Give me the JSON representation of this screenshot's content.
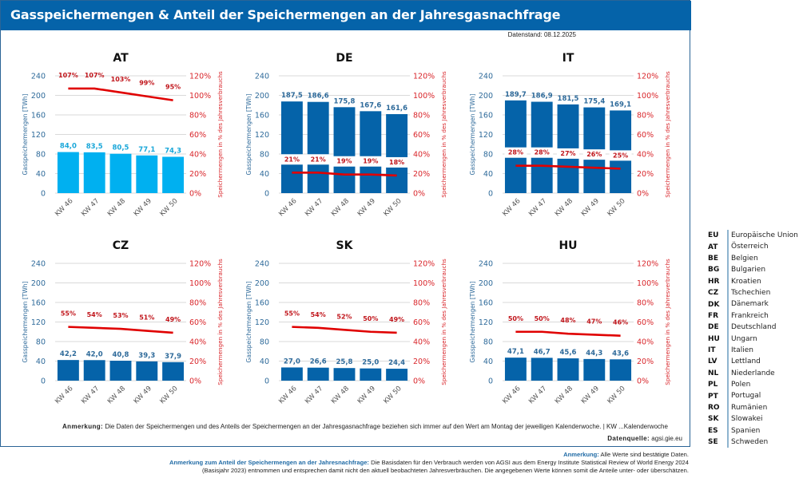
{
  "header": {
    "title": "Gasspeichermengen & Anteil der Speichermengen an der Jahresgasnachfrage",
    "datenstand": "Datenstand: 08.12.2025"
  },
  "chart_data": [
    {
      "type": "bar+line",
      "title": "AT",
      "categories": [
        "KW 46",
        "KW 47",
        "KW 48",
        "KW 49",
        "KW 50"
      ],
      "series": [
        {
          "name": "Gasspeichermengen [TWh]",
          "axis": "left",
          "values": [
            84.0,
            83.5,
            80.5,
            77.1,
            74.3
          ],
          "labels": [
            "84,0",
            "83,5",
            "80,5",
            "77,1",
            "74,3"
          ],
          "color": "#00b0f0"
        },
        {
          "name": "Speichermengen in % des Jahresverbrauchs",
          "axis": "right",
          "values": [
            107,
            107,
            103,
            99,
            95
          ],
          "labels": [
            "107%",
            "107%",
            "103%",
            "99%",
            "95%"
          ],
          "color": "#e00000"
        }
      ],
      "ylabel": "Gasspeichermengen [TWh]",
      "y2label": "Speichermengen in % des Jahresverbrauchs",
      "yticks": [
        "0",
        "40",
        "80",
        "120",
        "160",
        "200",
        "240"
      ],
      "y2ticks": [
        "0%",
        "20%",
        "40%",
        "60%",
        "80%",
        "100%",
        "120%"
      ],
      "ylim": [
        0,
        240
      ],
      "y2lim": [
        0,
        120
      ],
      "grid": true,
      "pct_label_boxed": false
    },
    {
      "type": "bar+line",
      "title": "DE",
      "categories": [
        "KW 46",
        "KW 47",
        "KW 48",
        "KW 49",
        "KW 50"
      ],
      "series": [
        {
          "name": "Gasspeichermengen [TWh]",
          "axis": "left",
          "values": [
            187.5,
            186.6,
            175.8,
            167.6,
            161.6
          ],
          "labels": [
            "187,5",
            "186,6",
            "175,8",
            "167,6",
            "161,6"
          ],
          "color": "#0563a9"
        },
        {
          "name": "Speichermengen in % des Jahresverbrauchs",
          "axis": "right",
          "values": [
            21,
            21,
            19,
            19,
            18
          ],
          "labels": [
            "21%",
            "21%",
            "19%",
            "19%",
            "18%"
          ],
          "color": "#e00000"
        }
      ],
      "ylabel": "Gasspeichermengen [TWh]",
      "y2label": "Speichermengen in % des Jahresverbrauchs",
      "yticks": [
        "0",
        "40",
        "80",
        "120",
        "160",
        "200",
        "240"
      ],
      "y2ticks": [
        "0%",
        "20%",
        "40%",
        "60%",
        "80%",
        "100%",
        "120%"
      ],
      "ylim": [
        0,
        240
      ],
      "y2lim": [
        0,
        120
      ],
      "grid": true,
      "pct_label_boxed": true
    },
    {
      "type": "bar+line",
      "title": "IT",
      "categories": [
        "KW 46",
        "KW 47",
        "KW 48",
        "KW 49",
        "KW 50"
      ],
      "series": [
        {
          "name": "Gasspeichermengen [TWh]",
          "axis": "left",
          "values": [
            189.7,
            186.9,
            181.5,
            175.4,
            169.1
          ],
          "labels": [
            "189,7",
            "186,9",
            "181,5",
            "175,4",
            "169,1"
          ],
          "color": "#0563a9"
        },
        {
          "name": "Speichermengen in % des Jahresverbrauchs",
          "axis": "right",
          "values": [
            28,
            28,
            27,
            26,
            25
          ],
          "labels": [
            "28%",
            "28%",
            "27%",
            "26%",
            "25%"
          ],
          "color": "#e00000"
        }
      ],
      "ylabel": "Gasspeichermengen [TWh]",
      "y2label": "Speichermengen in % des Jahresverbrauchs",
      "yticks": [
        "0",
        "40",
        "80",
        "120",
        "160",
        "200",
        "240"
      ],
      "y2ticks": [
        "0%",
        "20%",
        "40%",
        "60%",
        "80%",
        "100%",
        "120%"
      ],
      "ylim": [
        0,
        240
      ],
      "y2lim": [
        0,
        120
      ],
      "grid": true,
      "pct_label_boxed": true
    },
    {
      "type": "bar+line",
      "title": "CZ",
      "categories": [
        "KW 46",
        "KW 47",
        "KW 48",
        "KW 49",
        "KW 50"
      ],
      "series": [
        {
          "name": "Gasspeichermengen [TWh]",
          "axis": "left",
          "values": [
            42.2,
            42.0,
            40.8,
            39.3,
            37.9
          ],
          "labels": [
            "42,2",
            "42,0",
            "40,8",
            "39,3",
            "37,9"
          ],
          "color": "#0563a9"
        },
        {
          "name": "Speichermengen in % des Jahresverbrauchs",
          "axis": "right",
          "values": [
            55,
            54,
            53,
            51,
            49
          ],
          "labels": [
            "55%",
            "54%",
            "53%",
            "51%",
            "49%"
          ],
          "color": "#e00000"
        }
      ],
      "ylabel": "Gasspeichermengen [TWh]",
      "y2label": "Speichermengen in % des Jahresverbrauchs",
      "yticks": [
        "0",
        "40",
        "80",
        "120",
        "160",
        "200",
        "240"
      ],
      "y2ticks": [
        "0%",
        "20%",
        "40%",
        "60%",
        "80%",
        "100%",
        "120%"
      ],
      "ylim": [
        0,
        240
      ],
      "y2lim": [
        0,
        120
      ],
      "grid": true,
      "pct_label_boxed": false
    },
    {
      "type": "bar+line",
      "title": "SK",
      "categories": [
        "KW 46",
        "KW 47",
        "KW 48",
        "KW 49",
        "KW 50"
      ],
      "series": [
        {
          "name": "Gasspeichermengen [TWh]",
          "axis": "left",
          "values": [
            27.0,
            26.6,
            25.8,
            25.0,
            24.4
          ],
          "labels": [
            "27,0",
            "26,6",
            "25,8",
            "25,0",
            "24,4"
          ],
          "color": "#0563a9"
        },
        {
          "name": "Speichermengen in % des Jahresverbrauchs",
          "axis": "right",
          "values": [
            55,
            54,
            52,
            50,
            49
          ],
          "labels": [
            "55%",
            "54%",
            "52%",
            "50%",
            "49%"
          ],
          "color": "#e00000"
        }
      ],
      "ylabel": "Gasspeichermengen [TWh]",
      "y2label": "Speichermengen in % des Jahresverbrauchs",
      "yticks": [
        "0",
        "40",
        "80",
        "120",
        "160",
        "200",
        "240"
      ],
      "y2ticks": [
        "0%",
        "20%",
        "40%",
        "60%",
        "80%",
        "100%",
        "120%"
      ],
      "ylim": [
        0,
        240
      ],
      "y2lim": [
        0,
        120
      ],
      "grid": true,
      "pct_label_boxed": false
    },
    {
      "type": "bar+line",
      "title": "HU",
      "categories": [
        "KW 46",
        "KW 47",
        "KW 48",
        "KW 49",
        "KW 50"
      ],
      "series": [
        {
          "name": "Gasspeichermengen [TWh]",
          "axis": "left",
          "values": [
            47.1,
            46.7,
            45.6,
            44.3,
            43.6
          ],
          "labels": [
            "47,1",
            "46,7",
            "45,6",
            "44,3",
            "43,6"
          ],
          "color": "#0563a9"
        },
        {
          "name": "Speichermengen in % des Jahresverbrauchs",
          "axis": "right",
          "values": [
            50,
            50,
            48,
            47,
            46
          ],
          "labels": [
            "50%",
            "50%",
            "48%",
            "47%",
            "46%"
          ],
          "color": "#e00000"
        }
      ],
      "ylabel": "Gasspeichermengen [TWh]",
      "y2label": "Speichermengen in % des Jahresverbrauchs",
      "yticks": [
        "0",
        "40",
        "80",
        "120",
        "160",
        "200",
        "240"
      ],
      "y2ticks": [
        "0%",
        "20%",
        "40%",
        "60%",
        "80%",
        "100%",
        "120%"
      ],
      "ylim": [
        0,
        240
      ],
      "y2lim": [
        0,
        120
      ],
      "grid": true,
      "pct_label_boxed": false
    }
  ],
  "notes": {
    "anmerkung_label": "Anmerkung:",
    "anmerkung_text": "Die Daten der Speichermengen und des Anteils der Speichermengen an der Jahresgasnachfrage beziehen sich immer auf den Wert am Montag der jeweiligen Kalenderwoche.   |   KW ...Kalenderwoche",
    "datenquelle_label": "Datenquelle:",
    "datenquelle_text": "agsi.gie.eu"
  },
  "footer": {
    "line1_label": "Anmerkung:",
    "line1_text": "Alle Werte sind bestätigte Daten.",
    "line2_label": "Anmerkung zum Anteil der Speichermengen an der Jahresnachfrage:",
    "line2_text": "Die Basisdaten für den Verbrauch werden von AGSI aus dem  Energy Institute Statistical Review of World Energy 2024",
    "line3_text": "(Basisjahr 2023) entnommen und entsprechen damit nicht den aktuell beobachteten Jahresverbräuchen. Die angegebenen Werte können somit die Anteile unter- oder überschätzen."
  },
  "legend": [
    {
      "code": "EU",
      "name": "Europäische Union"
    },
    {
      "code": "AT",
      "name": "Österreich"
    },
    {
      "code": "BE",
      "name": "Belgien"
    },
    {
      "code": "BG",
      "name": "Bulgarien"
    },
    {
      "code": "HR",
      "name": "Kroatien"
    },
    {
      "code": "CZ",
      "name": "Tschechien"
    },
    {
      "code": "DK",
      "name": "Dänemark"
    },
    {
      "code": "FR",
      "name": "Frankreich"
    },
    {
      "code": "DE",
      "name": "Deutschland"
    },
    {
      "code": "HU",
      "name": "Ungarn"
    },
    {
      "code": "IT",
      "name": "Italien"
    },
    {
      "code": "LV",
      "name": "Lettland"
    },
    {
      "code": "NL",
      "name": "Niederlande"
    },
    {
      "code": "PL",
      "name": "Polen"
    },
    {
      "code": "PT",
      "name": "Portugal"
    },
    {
      "code": "RO",
      "name": "Rumänien"
    },
    {
      "code": "SK",
      "name": "Slowakei"
    },
    {
      "code": "ES",
      "name": "Spanien"
    },
    {
      "code": "SE",
      "name": "Schweden"
    }
  ]
}
